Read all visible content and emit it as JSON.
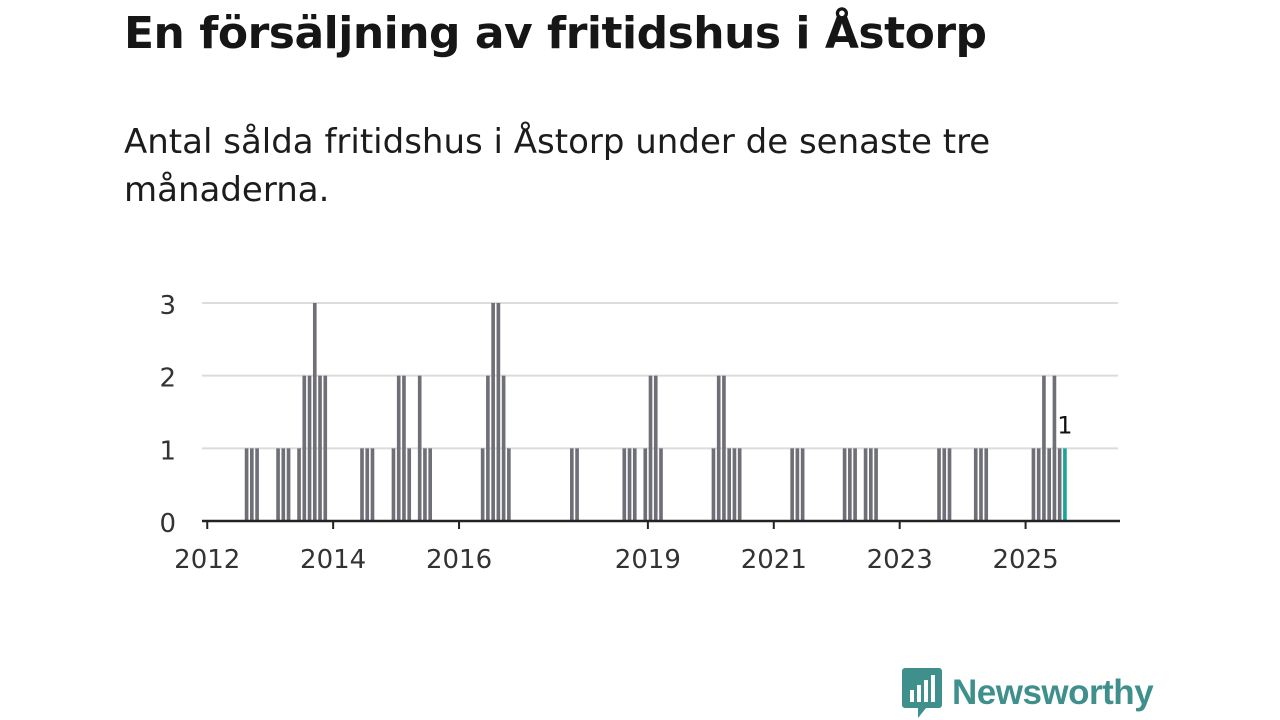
{
  "title": "En försäljning av fritidshus i Åstorp",
  "subtitle": "Antal sålda fritidshus i Åstorp under de senaste tre månaderna.",
  "brand": {
    "name": "Newsworthy",
    "icon": "bar-chart-speech-bubble-icon",
    "color": "#3f8f8c"
  },
  "chart_data": {
    "type": "bar",
    "title": "",
    "xlabel": "",
    "ylabel": "",
    "ylim": [
      0,
      3
    ],
    "yticks": [
      0,
      1,
      2,
      3
    ],
    "grid": true,
    "x_range": [
      "2011-12",
      "2026-07"
    ],
    "xticks": [
      {
        "label": "2012",
        "date": "2012-01"
      },
      {
        "label": "2014",
        "date": "2014-01"
      },
      {
        "label": "2016",
        "date": "2016-01"
      },
      {
        "label": "2019",
        "date": "2019-01"
      },
      {
        "label": "2021",
        "date": "2021-01"
      },
      {
        "label": "2023",
        "date": "2023-01"
      },
      {
        "label": "2025",
        "date": "2025-01"
      }
    ],
    "bar_color": "#6f6f77",
    "highlight_color": "#1aa39b",
    "highlight_label": "1",
    "categories": [
      "2012-08",
      "2012-09",
      "2012-10",
      "2013-02",
      "2013-03",
      "2013-04",
      "2013-06",
      "2013-07",
      "2013-08",
      "2013-09",
      "2013-10",
      "2013-11",
      "2014-06",
      "2014-07",
      "2014-08",
      "2014-12",
      "2015-01",
      "2015-02",
      "2015-03",
      "2015-05",
      "2015-06",
      "2015-07",
      "2016-05",
      "2016-06",
      "2016-07",
      "2016-08",
      "2016-09",
      "2016-10",
      "2017-10",
      "2017-11",
      "2018-08",
      "2018-09",
      "2018-10",
      "2018-12",
      "2019-01",
      "2019-02",
      "2019-03",
      "2020-01",
      "2020-02",
      "2020-03",
      "2020-04",
      "2020-05",
      "2020-06",
      "2021-04",
      "2021-05",
      "2021-06",
      "2022-02",
      "2022-03",
      "2022-04",
      "2022-06",
      "2022-07",
      "2022-08",
      "2023-08",
      "2023-09",
      "2023-10",
      "2024-03",
      "2024-04",
      "2024-05",
      "2025-02",
      "2025-03",
      "2025-04",
      "2025-05",
      "2025-06",
      "2025-07",
      "2025-08"
    ],
    "values": [
      1,
      1,
      1,
      1,
      1,
      1,
      1,
      2,
      2,
      3,
      2,
      2,
      1,
      1,
      1,
      1,
      2,
      2,
      1,
      2,
      1,
      1,
      1,
      2,
      3,
      3,
      2,
      1,
      1,
      1,
      1,
      1,
      1,
      1,
      2,
      2,
      1,
      1,
      2,
      2,
      1,
      1,
      1,
      1,
      1,
      1,
      1,
      1,
      1,
      1,
      1,
      1,
      1,
      1,
      1,
      1,
      1,
      1,
      1,
      1,
      2,
      1,
      2,
      1,
      1
    ]
  }
}
